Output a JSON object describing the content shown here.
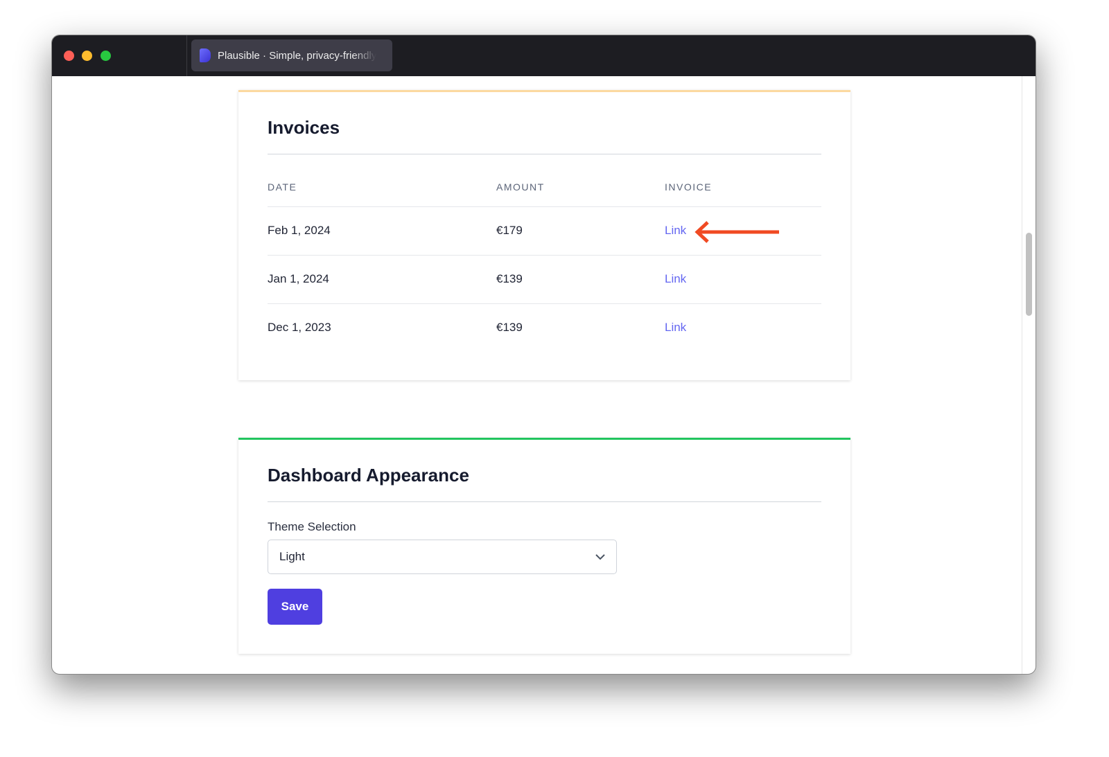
{
  "browser": {
    "tab_title": "Plausible · Simple, privacy-friendly"
  },
  "colors": {
    "close": "#fe5f57",
    "minimize": "#febc2e",
    "maximize": "#28c840",
    "accent": "#4f3fe0",
    "link": "#6366f1",
    "arrow": "#f04a23",
    "invoices_border": "#fcd9a0",
    "appearance_border": "#22c55e"
  },
  "invoices": {
    "title": "Invoices",
    "columns": [
      "DATE",
      "AMOUNT",
      "INVOICE"
    ],
    "rows": [
      {
        "date": "Feb 1, 2024",
        "amount": "€179",
        "invoice": "Link"
      },
      {
        "date": "Jan 1, 2024",
        "amount": "€139",
        "invoice": "Link"
      },
      {
        "date": "Dec 1, 2023",
        "amount": "€139",
        "invoice": "Link"
      }
    ]
  },
  "appearance": {
    "title": "Dashboard Appearance",
    "theme_label": "Theme Selection",
    "theme_value": "Light",
    "save_label": "Save"
  }
}
